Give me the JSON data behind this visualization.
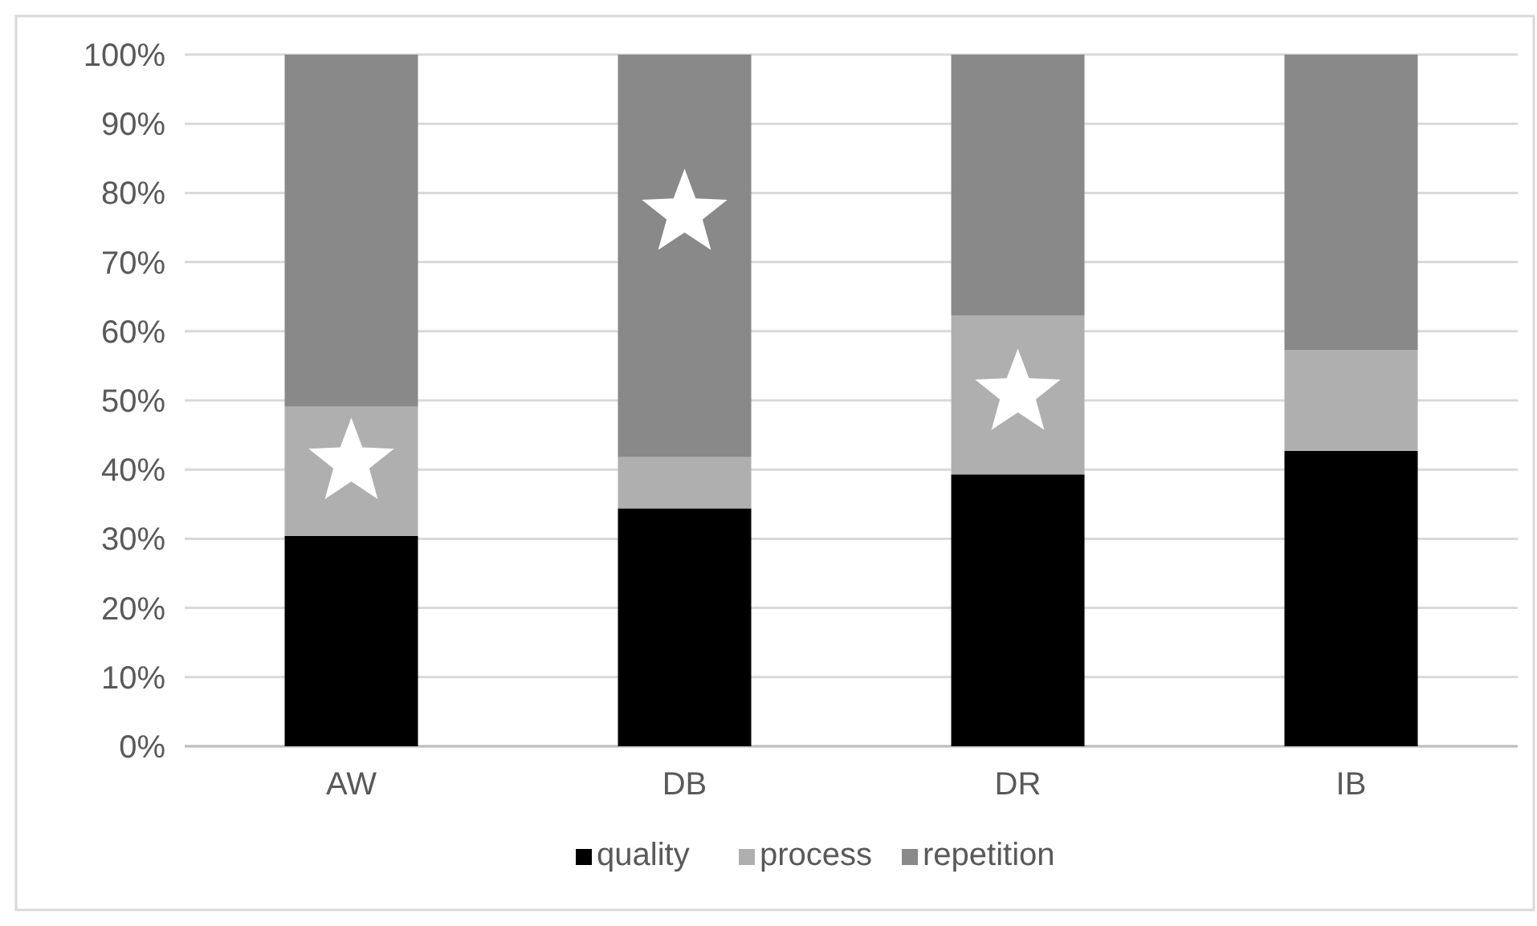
{
  "chart_data": {
    "type": "bar",
    "stacked": true,
    "categories": [
      "AW",
      "DB",
      "DR",
      "IB"
    ],
    "series": [
      {
        "name": "quality",
        "color": "#000000",
        "values": [
          30.4,
          34.4,
          39.3,
          42.7
        ]
      },
      {
        "name": "process",
        "color": "#afafaf",
        "values": [
          18.7,
          7.4,
          23.0,
          14.6
        ]
      },
      {
        "name": "repetition",
        "color": "#898989",
        "values": [
          50.9,
          58.2,
          37.7,
          42.7
        ]
      }
    ],
    "ylim": [
      0,
      100
    ],
    "yticks": [
      {
        "value": 0,
        "label": "0%"
      },
      {
        "value": 10,
        "label": "10%"
      },
      {
        "value": 20,
        "label": "20%"
      },
      {
        "value": 30,
        "label": "30%"
      },
      {
        "value": 40,
        "label": "40%"
      },
      {
        "value": 50,
        "label": "50%"
      },
      {
        "value": 60,
        "label": "60%"
      },
      {
        "value": 70,
        "label": "70%"
      },
      {
        "value": 80,
        "label": "80%"
      },
      {
        "value": 90,
        "label": "90%"
      },
      {
        "value": 100,
        "label": "100%"
      }
    ],
    "grid": "y",
    "legend": "bottom"
  }
}
